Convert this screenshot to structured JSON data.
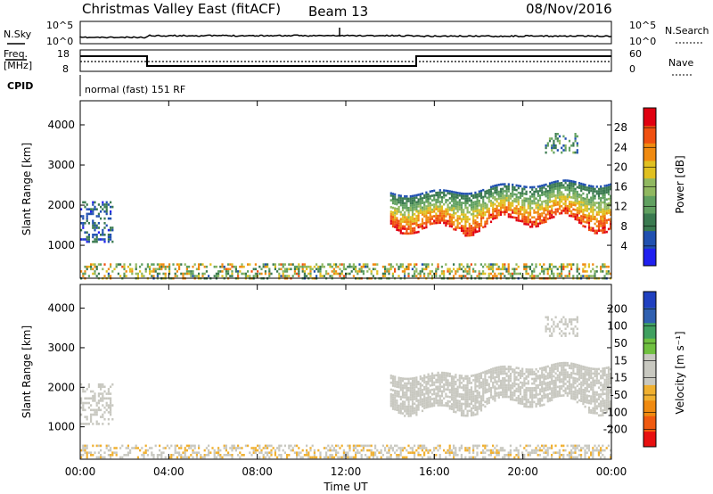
{
  "header": {
    "station": "Christmas Valley East (fitACF)",
    "beam": "Beam 13",
    "date": "08/Nov/2016"
  },
  "summary_panels": {
    "nsky": {
      "label": "N.Sky",
      "ticks": [
        "10^5",
        "10^0"
      ]
    },
    "nsearch": {
      "label": "N.Search",
      "ticks": [
        "10^5",
        "10^0"
      ]
    },
    "freq": {
      "label_top": "Freq.",
      "label_bottom": "[MHz]",
      "ticks": [
        "18",
        "8"
      ]
    },
    "nave": {
      "label": "Nave",
      "ticks": [
        "60",
        "0"
      ]
    },
    "cpid": {
      "label": "CPID",
      "text": "normal (fast) 151 RF"
    }
  },
  "colors": {
    "power_scale": [
      "#2020f0",
      "#2050b0",
      "#3a7a50",
      "#60a060",
      "#90b860",
      "#e0c020",
      "#f08a10",
      "#f05010",
      "#e00010"
    ],
    "velocity_scale": [
      "#e81010",
      "#f05a10",
      "#f08a10",
      "#f0b030",
      "#c8c8c0",
      "#c8c8c0",
      "#70c040",
      "#40a060",
      "#3060b0",
      "#2040c0"
    ]
  },
  "chart_data": [
    {
      "type": "heatmap",
      "panel": "power",
      "title": "",
      "xlabel": "",
      "ylabel": "Slant Range [km]",
      "xlim": [
        "00:00",
        "24:00"
      ],
      "ylim": [
        180,
        4600
      ],
      "y_ticks": [
        "1000",
        "2000",
        "3000",
        "4000"
      ],
      "colorbar": {
        "label": "Power [dB]",
        "ticks": [
          "4",
          "8",
          "12",
          "16",
          "20",
          "24",
          "28"
        ],
        "range": [
          0,
          30
        ]
      },
      "echo_regions": [
        {
          "t_start": "14:00",
          "t_end": "24:00",
          "range_km": [
            1300,
            2500
          ],
          "peak_power_db": 30
        },
        {
          "t_start": "00:00",
          "t_end": "01:30",
          "range_km": [
            1100,
            2100
          ],
          "peak_power_db": 8
        },
        {
          "t_start": "00:00",
          "t_end": "24:00",
          "range_km": [
            200,
            550
          ],
          "peak_power_db": 20
        },
        {
          "t_start": "21:00",
          "t_end": "22:30",
          "range_km": [
            3300,
            3800
          ],
          "peak_power_db": 12
        }
      ]
    },
    {
      "type": "heatmap",
      "panel": "velocity",
      "title": "",
      "xlabel": "Time UT",
      "ylabel": "Slant Range [km]",
      "xlim": [
        "00:00",
        "24:00"
      ],
      "ylim": [
        180,
        4600
      ],
      "x_ticks": [
        "00:00",
        "04:00",
        "08:00",
        "12:00",
        "16:00",
        "20:00",
        "00:00"
      ],
      "y_ticks": [
        "1000",
        "2000",
        "3000",
        "4000"
      ],
      "colorbar": {
        "label": "Velocity [m s⁻¹]",
        "ticks": [
          "200",
          "100",
          "50",
          "15",
          "-15",
          "-50",
          "-100",
          "-200"
        ],
        "range": [
          -250,
          250
        ]
      },
      "echo_regions": [
        {
          "t_start": "14:00",
          "t_end": "24:00",
          "range_km": [
            1300,
            2500
          ],
          "velocity_ms": 0
        },
        {
          "t_start": "00:00",
          "t_end": "01:30",
          "range_km": [
            1100,
            2100
          ],
          "velocity_ms": 0
        },
        {
          "t_start": "00:00",
          "t_end": "24:00",
          "range_km": [
            200,
            550
          ],
          "velocity_ms": -40
        },
        {
          "t_start": "21:00",
          "t_end": "22:30",
          "range_km": [
            3300,
            3800
          ],
          "velocity_ms": 0
        }
      ]
    }
  ]
}
